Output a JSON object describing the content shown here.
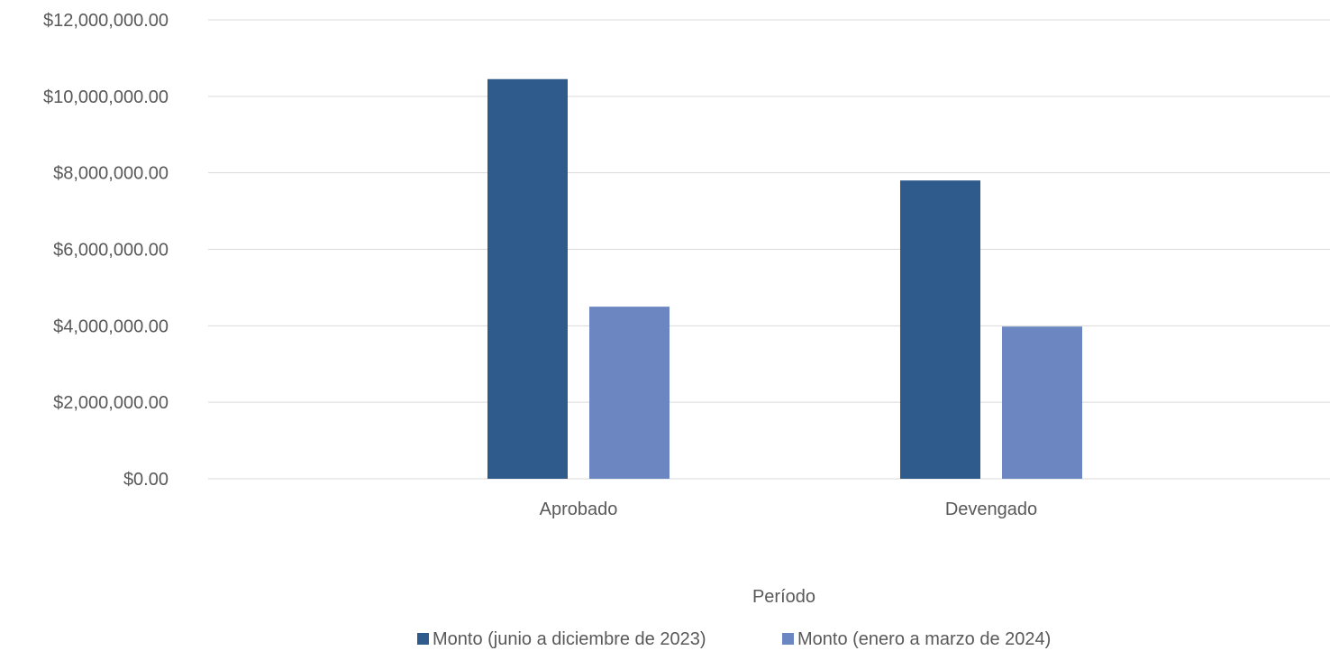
{
  "chart_data": {
    "type": "bar",
    "categories": [
      "Aprobado",
      "Devengado"
    ],
    "series": [
      {
        "name": "Monto (junio a diciembre de 2023)",
        "color": "#2e5a8c",
        "values": [
          10450000,
          7800000
        ]
      },
      {
        "name": "Monto (enero a marzo de 2024)",
        "color": "#6c86c2",
        "values": [
          4500000,
          3980000
        ]
      }
    ],
    "title": "",
    "xlabel": "Período",
    "ylabel": "",
    "ylim": [
      0,
      12000000
    ],
    "yticks": [
      0,
      2000000,
      4000000,
      6000000,
      8000000,
      10000000,
      12000000
    ],
    "ytick_labels": [
      "$0.00",
      "$2,000,000.00",
      "$4,000,000.00",
      "$6,000,000.00",
      "$8,000,000.00",
      "$10,000,000.00",
      "$12,000,000.00"
    ],
    "grid": true,
    "legend_position": "bottom"
  }
}
